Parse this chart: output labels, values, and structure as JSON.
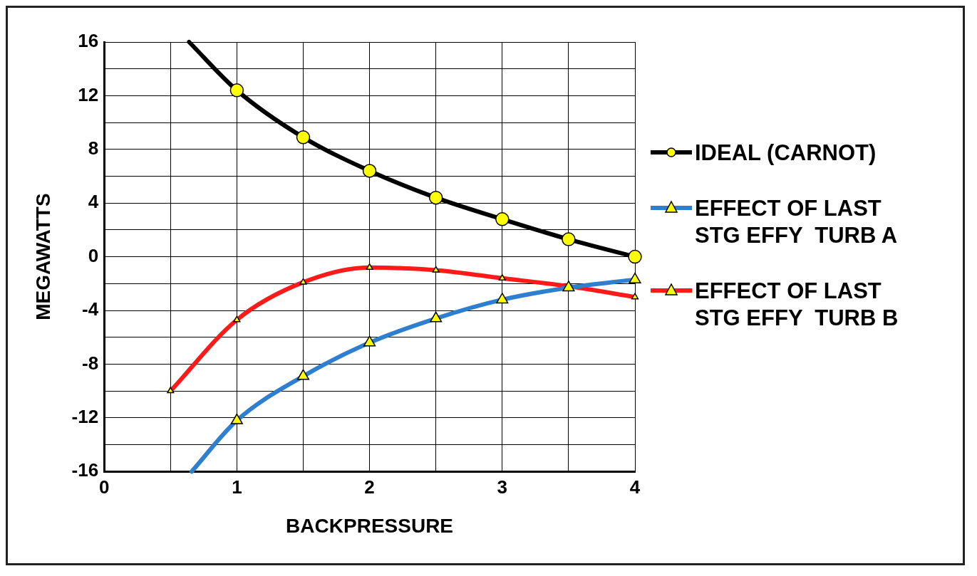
{
  "chart_data": {
    "type": "line",
    "xlabel": "BACKPRESSURE",
    "ylabel": "MEGAWATTS",
    "xlim": [
      0,
      4
    ],
    "ylim": [
      -16,
      16
    ],
    "xticks": [
      0,
      {
        "value": 0.5,
        "label": null
      },
      1,
      {
        "value": 1.5,
        "label": null
      },
      2,
      {
        "value": 2.5,
        "label": null
      },
      3,
      {
        "value": 3.5,
        "label": null
      },
      4
    ],
    "yticks": [
      -16,
      {
        "value": -14,
        "label": null
      },
      -12,
      {
        "value": -10,
        "label": null
      },
      -8,
      {
        "value": -6,
        "label": null
      },
      -4,
      {
        "value": -2,
        "label": null
      },
      0,
      {
        "value": 2,
        "label": null
      },
      4,
      {
        "value": 6,
        "label": null
      },
      8,
      {
        "value": 10,
        "label": null
      },
      12,
      {
        "value": 14,
        "label": null
      },
      16
    ],
    "grid": true,
    "legend": "right",
    "line_style": "solid",
    "series": [
      {
        "name": "IDEAL (CARNOT)",
        "color": "#000000",
        "marker": "circle",
        "x": [
          0.64,
          1,
          1.5,
          2,
          2.5,
          3,
          3.5,
          4
        ],
        "values": [
          16,
          12.4,
          8.9,
          6.4,
          4.4,
          2.8,
          1.3,
          0
        ]
      },
      {
        "name": "EFFECT OF LAST STG EFFY  TURB A",
        "color": "#2e7fd0",
        "marker": "triangle",
        "x": [
          0.66,
          1,
          1.5,
          2,
          2.5,
          3,
          3.5,
          4
        ],
        "values": [
          -16,
          -12.2,
          -8.9,
          -6.4,
          -4.6,
          -3.2,
          -2.3,
          -1.7
        ]
      },
      {
        "name": "EFFECT OF LAST STG EFFY  TURB B",
        "color": "#ff1a1a",
        "marker": "triangle",
        "x": [
          0.5,
          1,
          1.5,
          2,
          2.5,
          3,
          3.5,
          4
        ],
        "values": [
          -10,
          -4.7,
          -1.9,
          -0.8,
          -1.0,
          -1.6,
          -2.2,
          -3.0
        ]
      }
    ]
  }
}
